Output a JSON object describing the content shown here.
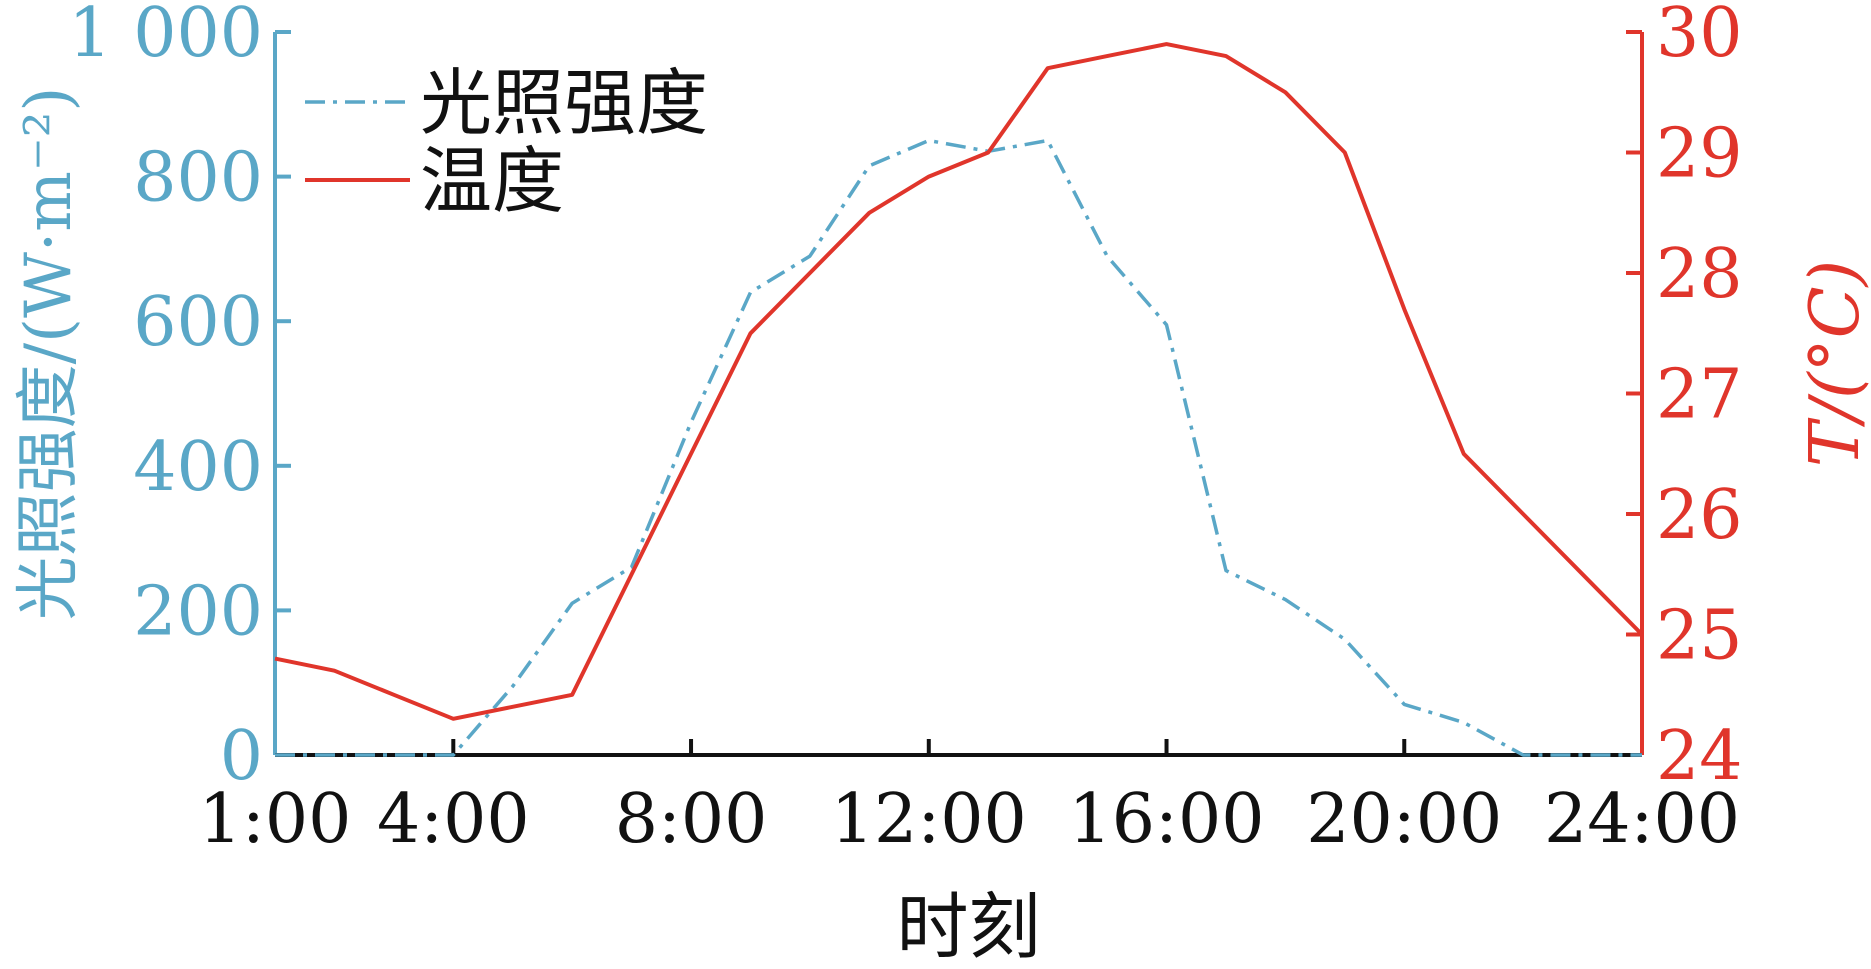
{
  "chart_data": {
    "type": "line",
    "xlabel": "时刻",
    "x_ticks": [
      {
        "hour": 1,
        "label": "1:00"
      },
      {
        "hour": 4,
        "label": "4:00"
      },
      {
        "hour": 8,
        "label": "8:00"
      },
      {
        "hour": 12,
        "label": "12:00"
      },
      {
        "hour": 16,
        "label": "16:00"
      },
      {
        "hour": 20,
        "label": "20:00"
      },
      {
        "hour": 24,
        "label": "24:00"
      }
    ],
    "xlim": [
      1,
      24
    ],
    "y_left": {
      "label": "光照强度/(W·m⁻²)",
      "ylim": [
        0,
        1000
      ],
      "ticks": [
        0,
        200,
        400,
        600,
        800,
        1000
      ],
      "tick_labels": [
        "0",
        "200",
        "400",
        "600",
        "800",
        "1 000"
      ],
      "color": "#5aa7c7"
    },
    "y_right": {
      "label": "T/(°C)",
      "ylim": [
        24,
        30
      ],
      "ticks": [
        24,
        25,
        26,
        27,
        28,
        29,
        30
      ],
      "tick_labels": [
        "24",
        "25",
        "26",
        "27",
        "28",
        "29",
        "30"
      ],
      "color": "#e0352b"
    },
    "series": [
      {
        "name": "光照强度",
        "axis": "left",
        "style": "dashdot",
        "color": "#5aa7c7",
        "x": [
          1,
          2,
          3,
          4,
          5,
          6,
          7,
          8,
          9,
          10,
          11,
          12,
          13,
          14,
          15,
          16,
          17,
          18,
          19,
          20,
          21,
          22,
          23,
          24
        ],
        "values": [
          0,
          0,
          0,
          0,
          95,
          210,
          260,
          460,
          640,
          690,
          815,
          850,
          835,
          850,
          690,
          595,
          255,
          215,
          160,
          70,
          45,
          0,
          0,
          0
        ]
      },
      {
        "name": "温度",
        "axis": "right",
        "style": "solid",
        "color": "#e0352b",
        "x": [
          1,
          2,
          3,
          4,
          5,
          6,
          7,
          8,
          9,
          10,
          11,
          12,
          13,
          14,
          15,
          16,
          17,
          18,
          19,
          20,
          21,
          22,
          23,
          24
        ],
        "values": [
          24.8,
          24.7,
          24.5,
          24.3,
          24.4,
          24.5,
          25.5,
          26.5,
          27.5,
          28.0,
          28.5,
          28.8,
          29.0,
          29.7,
          29.8,
          29.9,
          29.8,
          29.5,
          29.0,
          27.7,
          26.5,
          26.0,
          25.5,
          25.0
        ]
      }
    ],
    "legend_position": "top-left"
  }
}
